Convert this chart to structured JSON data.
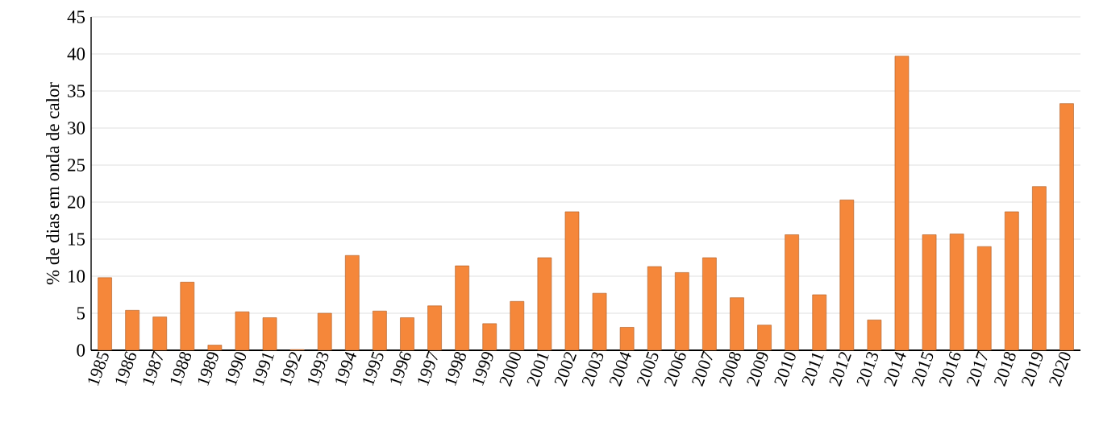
{
  "chart_data": {
    "type": "bar",
    "ylabel": "% de dias em onda de calor",
    "categories": [
      "1985",
      "1986",
      "1987",
      "1988",
      "1989",
      "1990",
      "1991",
      "1992",
      "1993",
      "1994",
      "1995",
      "1996",
      "1997",
      "1998",
      "1999",
      "2000",
      "2001",
      "2002",
      "2003",
      "2004",
      "2005",
      "2006",
      "2007",
      "2008",
      "2009",
      "2010",
      "2011",
      "2012",
      "2013",
      "2014",
      "2015",
      "2016",
      "2017",
      "2018",
      "2019",
      "2020"
    ],
    "values": [
      9.8,
      5.4,
      4.5,
      9.2,
      0.7,
      5.2,
      4.4,
      0.1,
      5.0,
      12.8,
      5.3,
      4.4,
      6.0,
      11.4,
      3.6,
      6.6,
      12.5,
      18.7,
      7.7,
      3.1,
      11.3,
      10.5,
      12.5,
      7.1,
      3.4,
      15.6,
      7.5,
      20.3,
      4.1,
      39.7,
      15.6,
      15.7,
      14.0,
      18.7,
      22.1,
      33.3
    ],
    "color": "#f5873a",
    "ylim": [
      0,
      45
    ],
    "yticks": [
      0,
      5,
      10,
      15,
      20,
      25,
      30,
      35,
      40,
      45
    ],
    "grid": "y"
  }
}
